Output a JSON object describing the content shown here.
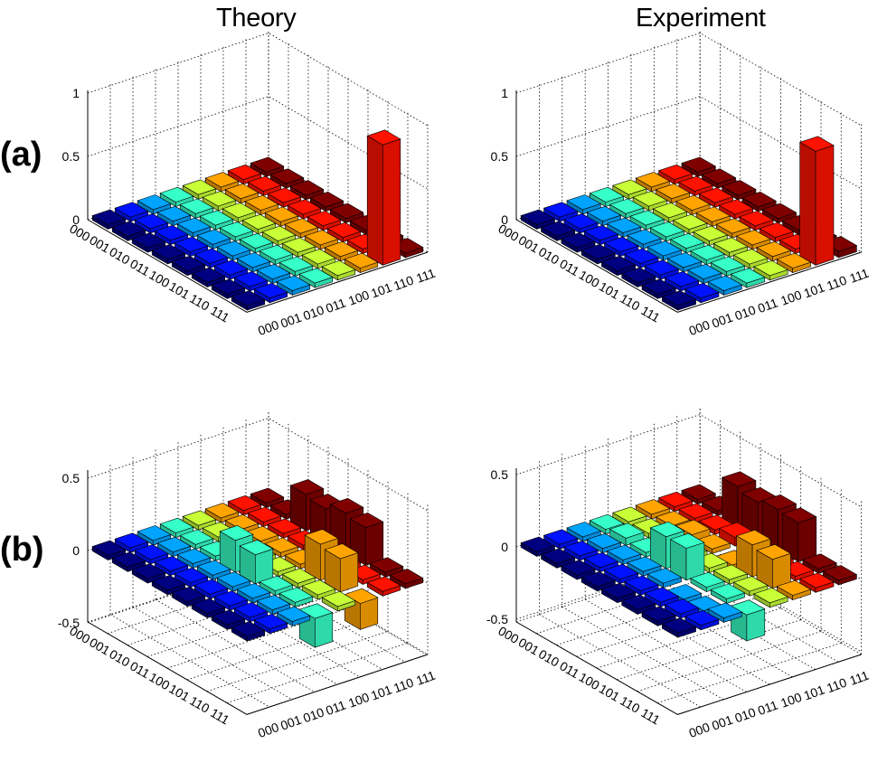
{
  "titles": {
    "theory": "Theory",
    "experiment": "Experiment"
  },
  "row_labels": {
    "a": "(a)",
    "b": "(b)"
  },
  "basis_labels": [
    "000",
    "001",
    "010",
    "011",
    "100",
    "101",
    "110",
    "111"
  ],
  "chart_data": [
    {
      "id": "a-theory",
      "type": "bar3d",
      "row": "(a)",
      "title": "Theory",
      "zlim": [
        0,
        1
      ],
      "zticks": [
        "0",
        "0.5",
        "1"
      ],
      "zticks_values": [
        0,
        0.5,
        1
      ],
      "bars": [
        {
          "row": 7,
          "col": 6,
          "value": 0.95
        }
      ]
    },
    {
      "id": "a-experiment",
      "type": "bar3d",
      "row": "(a)",
      "title": "Experiment",
      "zlim": [
        0,
        1
      ],
      "zticks": [
        "0",
        "0.5",
        "1"
      ],
      "zticks_values": [
        0,
        0.5,
        1
      ],
      "bars": [
        {
          "row": 7,
          "col": 6,
          "value": 0.9
        },
        {
          "row": 6,
          "col": 7,
          "value": 0.03
        },
        {
          "row": 7,
          "col": 7,
          "value": 0.05
        },
        {
          "row": 5,
          "col": 4,
          "value": 0.02
        },
        {
          "row": 6,
          "col": 4,
          "value": 0.02
        },
        {
          "row": 3,
          "col": 6,
          "value": 0.02
        },
        {
          "row": 1,
          "col": 7,
          "value": 0.02
        }
      ]
    },
    {
      "id": "b-theory",
      "type": "bar3d",
      "row": "(b)",
      "title": "Theory",
      "zlim": [
        -0.5,
        0.5
      ],
      "zticks": [
        "0.5",
        "0",
        "-0.5"
      ],
      "zticks_values": [
        0.5,
        0,
        -0.5
      ],
      "bars": [
        {
          "row": 3,
          "col": 3,
          "value": 0.22
        },
        {
          "row": 4,
          "col": 3,
          "value": 0.2
        },
        {
          "row": 5,
          "col": 5,
          "value": 0.25
        },
        {
          "row": 6,
          "col": 5,
          "value": 0.23
        },
        {
          "row": 2,
          "col": 7,
          "value": 0.25
        },
        {
          "row": 3,
          "col": 7,
          "value": 0.23
        },
        {
          "row": 4,
          "col": 7,
          "value": 0.28
        },
        {
          "row": 5,
          "col": 7,
          "value": 0.26
        },
        {
          "row": 7,
          "col": 3,
          "value": -0.2
        },
        {
          "row": 7,
          "col": 5,
          "value": -0.18
        }
      ]
    },
    {
      "id": "b-experiment",
      "type": "bar3d",
      "row": "(b)",
      "title": "Experiment",
      "zlim": [
        -0.5,
        0.5
      ],
      "zticks": [
        "0.5",
        "0",
        "-0.5"
      ],
      "zticks_values": [
        0.5,
        0,
        -0.5
      ],
      "bars": [
        {
          "row": 3,
          "col": 3,
          "value": 0.22
        },
        {
          "row": 4,
          "col": 3,
          "value": 0.22
        },
        {
          "row": 5,
          "col": 5,
          "value": 0.22
        },
        {
          "row": 6,
          "col": 5,
          "value": 0.2
        },
        {
          "row": 2,
          "col": 7,
          "value": 0.28
        },
        {
          "row": 3,
          "col": 7,
          "value": 0.25
        },
        {
          "row": 4,
          "col": 7,
          "value": 0.28
        },
        {
          "row": 5,
          "col": 7,
          "value": 0.27
        },
        {
          "row": 7,
          "col": 3,
          "value": -0.18
        },
        {
          "row": 3,
          "col": 6,
          "value": 0.06
        },
        {
          "row": 2,
          "col": 5,
          "value": 0.05
        },
        {
          "row": 1,
          "col": 3,
          "value": 0.05
        },
        {
          "row": 6,
          "col": 2,
          "value": -0.05
        },
        {
          "row": 5,
          "col": 2,
          "value": -0.04
        },
        {
          "row": 4,
          "col": 5,
          "value": -0.05
        }
      ]
    }
  ]
}
